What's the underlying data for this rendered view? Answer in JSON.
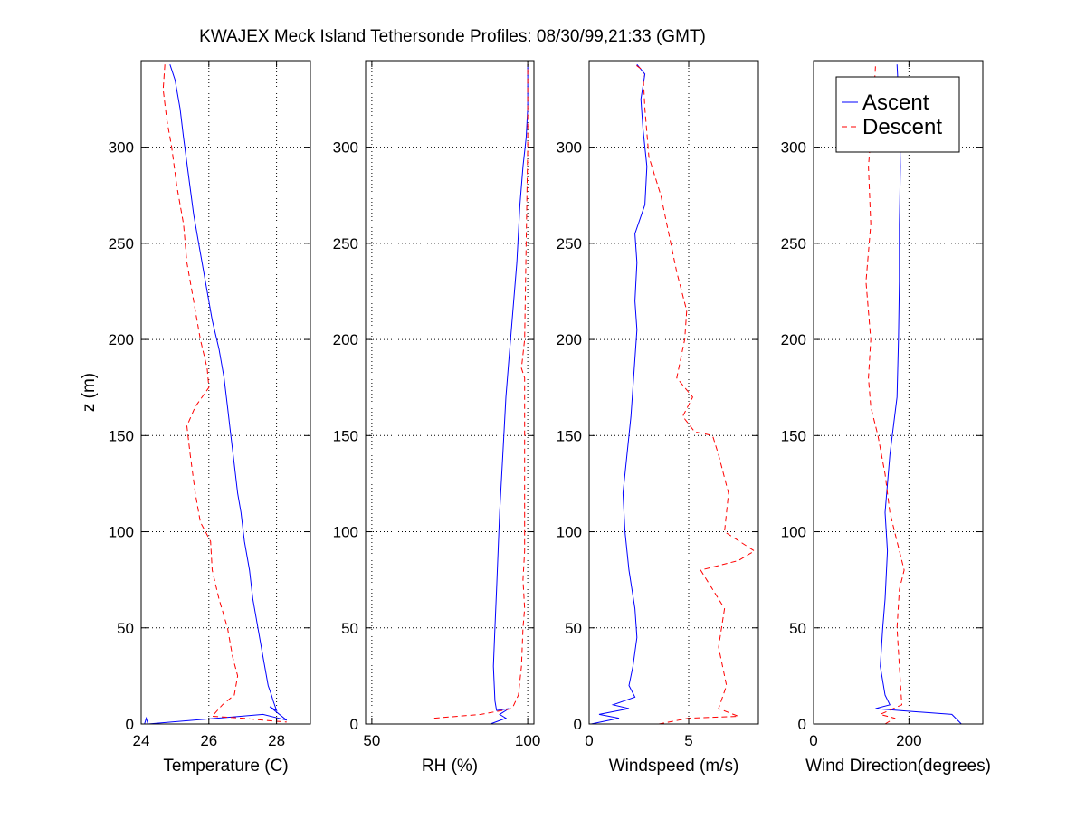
{
  "figure": {
    "title": "KWAJEX Meck Island Tethersonde Profiles: 08/30/99,21:33 (GMT)"
  },
  "colors": {
    "ascent": "#0000ff",
    "descent": "#ff0000",
    "axes": "#000000",
    "grid": "#000000"
  },
  "chart_data": [
    {
      "type": "line",
      "xlabel": "Temperature (C)",
      "ylabel": "z (m)",
      "xlim": [
        24,
        29
      ],
      "ylim": [
        0,
        345
      ],
      "xticks": [
        24,
        26,
        28
      ],
      "yticks": [
        0,
        50,
        100,
        150,
        200,
        250,
        300
      ],
      "grid": true,
      "series": [
        {
          "name": "Ascent",
          "style": "solid",
          "points": [
            [
              24.1,
              0
            ],
            [
              24.15,
              3
            ],
            [
              24.2,
              0
            ],
            [
              27.6,
              5
            ],
            [
              28.3,
              2
            ],
            [
              27.8,
              9
            ],
            [
              28.0,
              7
            ],
            [
              27.9,
              12
            ],
            [
              27.85,
              15
            ],
            [
              27.75,
              20
            ],
            [
              27.6,
              35
            ],
            [
              27.45,
              50
            ],
            [
              27.3,
              65
            ],
            [
              27.2,
              80
            ],
            [
              27.05,
              95
            ],
            [
              26.95,
              110
            ],
            [
              26.85,
              120
            ],
            [
              26.75,
              135
            ],
            [
              26.65,
              150
            ],
            [
              26.55,
              165
            ],
            [
              26.45,
              180
            ],
            [
              26.3,
              195
            ],
            [
              26.1,
              210
            ],
            [
              25.95,
              225
            ],
            [
              25.75,
              245
            ],
            [
              25.55,
              265
            ],
            [
              25.4,
              285
            ],
            [
              25.25,
              305
            ],
            [
              25.15,
              320
            ],
            [
              25.0,
              335
            ],
            [
              24.85,
              343
            ]
          ]
        },
        {
          "name": "Descent",
          "style": "dashed",
          "points": [
            [
              24.7,
              343
            ],
            [
              24.65,
              330
            ],
            [
              24.75,
              315
            ],
            [
              24.9,
              300
            ],
            [
              25.05,
              280
            ],
            [
              25.25,
              260
            ],
            [
              25.35,
              240
            ],
            [
              25.55,
              220
            ],
            [
              25.75,
              200
            ],
            [
              25.95,
              185
            ],
            [
              26.0,
              175
            ],
            [
              25.6,
              165
            ],
            [
              25.35,
              155
            ],
            [
              25.45,
              140
            ],
            [
              25.6,
              120
            ],
            [
              25.75,
              105
            ],
            [
              26.05,
              95
            ],
            [
              26.1,
              80
            ],
            [
              26.3,
              65
            ],
            [
              26.55,
              50
            ],
            [
              26.7,
              35
            ],
            [
              26.85,
              25
            ],
            [
              26.75,
              15
            ],
            [
              26.4,
              10
            ],
            [
              26.1,
              4
            ],
            [
              27.0,
              3
            ],
            [
              27.6,
              2
            ],
            [
              28.3,
              1
            ]
          ]
        }
      ]
    },
    {
      "type": "line",
      "xlabel": "RH (%)",
      "ylabel": "",
      "xlim": [
        48,
        102
      ],
      "ylim": [
        0,
        345
      ],
      "xticks": [
        50,
        100
      ],
      "yticks": [
        0,
        50,
        100,
        150,
        200,
        250,
        300
      ],
      "grid": true,
      "series": [
        {
          "name": "Ascent",
          "style": "solid",
          "points": [
            [
              88,
              0
            ],
            [
              93,
              3
            ],
            [
              91,
              5
            ],
            [
              94,
              8
            ],
            [
              90,
              7
            ],
            [
              89.5,
              12
            ],
            [
              89,
              30
            ],
            [
              89.5,
              50
            ],
            [
              90,
              70
            ],
            [
              90.5,
              90
            ],
            [
              91,
              110
            ],
            [
              92,
              140
            ],
            [
              93,
              170
            ],
            [
              94,
              190
            ],
            [
              95,
              210
            ],
            [
              96.5,
              240
            ],
            [
              97.5,
              270
            ],
            [
              98.5,
              290
            ],
            [
              99.5,
              305
            ],
            [
              100,
              320
            ],
            [
              100,
              343
            ]
          ]
        },
        {
          "name": "Descent",
          "style": "dashed",
          "points": [
            [
              70,
              3
            ],
            [
              85,
              5
            ],
            [
              95,
              8
            ],
            [
              97,
              15
            ],
            [
              98,
              30
            ],
            [
              98.5,
              50
            ],
            [
              99,
              60
            ],
            [
              98.5,
              75
            ],
            [
              99,
              90
            ],
            [
              99,
              150
            ],
            [
              99,
              180
            ],
            [
              98,
              185
            ],
            [
              99,
              200
            ],
            [
              99.5,
              250
            ],
            [
              100,
              300
            ],
            [
              100,
              343
            ]
          ]
        }
      ]
    },
    {
      "type": "line",
      "xlabel": "Windspeed (m/s)",
      "ylabel": "",
      "xlim": [
        0,
        8.5
      ],
      "ylim": [
        0,
        345
      ],
      "xticks": [
        0,
        5
      ],
      "yticks": [
        0,
        50,
        100,
        150,
        200,
        250,
        300
      ],
      "grid": true,
      "series": [
        {
          "name": "Ascent",
          "style": "solid",
          "points": [
            [
              0.1,
              0
            ],
            [
              1.5,
              3
            ],
            [
              0.5,
              5
            ],
            [
              2.0,
              8
            ],
            [
              1.2,
              10
            ],
            [
              2.3,
              14
            ],
            [
              2.0,
              20
            ],
            [
              2.2,
              30
            ],
            [
              2.4,
              45
            ],
            [
              2.3,
              60
            ],
            [
              2.0,
              80
            ],
            [
              1.8,
              100
            ],
            [
              1.7,
              120
            ],
            [
              1.9,
              140
            ],
            [
              2.1,
              160
            ],
            [
              2.2,
              175
            ],
            [
              2.3,
              190
            ],
            [
              2.4,
              205
            ],
            [
              2.3,
              220
            ],
            [
              2.4,
              240
            ],
            [
              2.3,
              255
            ],
            [
              2.8,
              270
            ],
            [
              2.9,
              290
            ],
            [
              2.7,
              310
            ],
            [
              2.6,
              325
            ],
            [
              2.8,
              338
            ],
            [
              2.4,
              343
            ]
          ]
        },
        {
          "name": "Descent",
          "style": "dashed",
          "points": [
            [
              3.5,
              0
            ],
            [
              5.0,
              3
            ],
            [
              7.5,
              4
            ],
            [
              6.5,
              8
            ],
            [
              6.9,
              20
            ],
            [
              6.5,
              40
            ],
            [
              6.8,
              60
            ],
            [
              5.6,
              80
            ],
            [
              7.5,
              85
            ],
            [
              8.3,
              90
            ],
            [
              6.8,
              100
            ],
            [
              7.0,
              120
            ],
            [
              6.5,
              140
            ],
            [
              6.2,
              150
            ],
            [
              5.3,
              152
            ],
            [
              4.7,
              160
            ],
            [
              5.2,
              170
            ],
            [
              4.4,
              180
            ],
            [
              4.8,
              200
            ],
            [
              4.9,
              215
            ],
            [
              4.4,
              235
            ],
            [
              4.0,
              255
            ],
            [
              3.6,
              275
            ],
            [
              3.0,
              295
            ],
            [
              2.8,
              320
            ],
            [
              2.7,
              340
            ],
            [
              2.3,
              343
            ]
          ]
        }
      ]
    },
    {
      "type": "line",
      "xlabel": "Wind Direction(degrees)",
      "ylabel": "",
      "xlim": [
        0,
        355
      ],
      "ylim": [
        0,
        345
      ],
      "xticks": [
        0,
        200
      ],
      "yticks": [
        0,
        50,
        100,
        150,
        200,
        250,
        300
      ],
      "grid": true,
      "legend": {
        "position": "top-right",
        "entries": [
          "Ascent",
          "Descent"
        ]
      },
      "series": [
        {
          "name": "Ascent",
          "style": "solid",
          "points": [
            [
              310,
              0
            ],
            [
              290,
              5
            ],
            [
              180,
              7
            ],
            [
              130,
              8
            ],
            [
              160,
              10
            ],
            [
              150,
              15
            ],
            [
              140,
              30
            ],
            [
              145,
              50
            ],
            [
              150,
              65
            ],
            [
              155,
              90
            ],
            [
              150,
              110
            ],
            [
              160,
              140
            ],
            [
              175,
              170
            ],
            [
              178,
              200
            ],
            [
              180,
              230
            ],
            [
              180,
              260
            ],
            [
              182,
              290
            ],
            [
              180,
              320
            ],
            [
              175,
              343
            ]
          ]
        },
        {
          "name": "Descent",
          "style": "dashed",
          "points": [
            [
              150,
              0
            ],
            [
              170,
              3
            ],
            [
              140,
              5
            ],
            [
              185,
              10
            ],
            [
              180,
              30
            ],
            [
              175,
              50
            ],
            [
              180,
              70
            ],
            [
              190,
              80
            ],
            [
              175,
              95
            ],
            [
              160,
              110
            ],
            [
              150,
              130
            ],
            [
              135,
              150
            ],
            [
              120,
              165
            ],
            [
              115,
              180
            ],
            [
              120,
              200
            ],
            [
              110,
              230
            ],
            [
              120,
              260
            ],
            [
              115,
              290
            ],
            [
              125,
              320
            ],
            [
              130,
              343
            ]
          ]
        }
      ]
    }
  ]
}
